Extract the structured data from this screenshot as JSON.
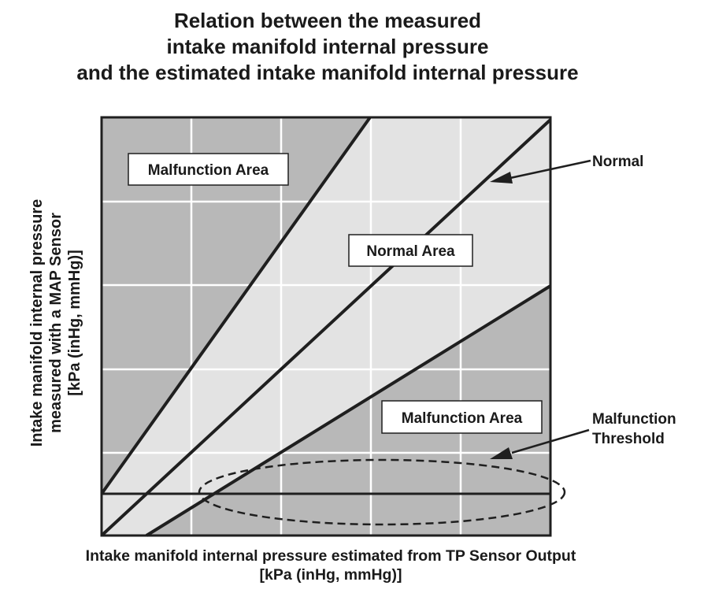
{
  "title": {
    "line1": "Relation between the measured",
    "line2": "intake manifold internal pressure",
    "line3": "and the estimated intake manifold internal pressure"
  },
  "y_axis": {
    "line1": "Intake manifold internal pressure",
    "line2": "measured with a MAP Sensor",
    "line3": "[kPa (inHg, mmHg)]"
  },
  "x_axis": {
    "line1": "Intake manifold internal pressure estimated from TP Sensor Output",
    "line2": "[kPa (inHg, mmHg)]"
  },
  "areas": {
    "malfunction_upper": "Malfunction Area",
    "normal": "Normal Area",
    "malfunction_lower": "Malfunction Area"
  },
  "callouts": {
    "normal": "Normal",
    "threshold_line1": "Malfunction",
    "threshold_line2": "Threshold"
  },
  "colors": {
    "malfunction_fill": "#b8b8b8",
    "normal_fill": "#e3e3e3",
    "grid": "#ffffff",
    "line": "#1f1f1f"
  }
}
